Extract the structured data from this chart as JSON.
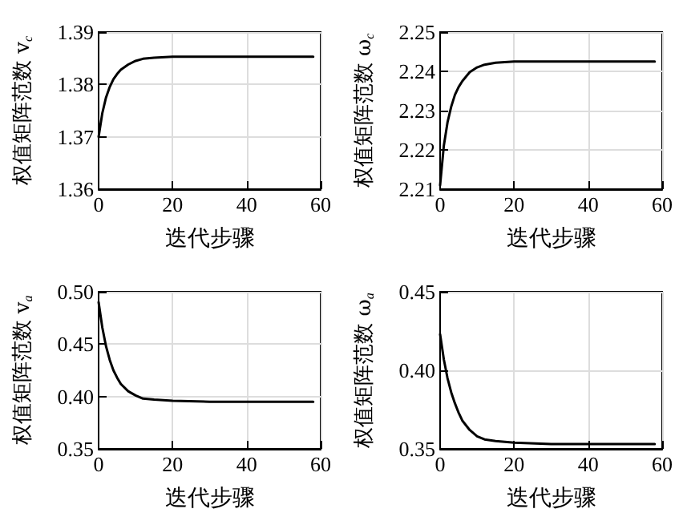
{
  "chart_data": [
    {
      "type": "line",
      "xlabel": "迭代步骤",
      "ylabel": "权值矩阵范数 v$_{c}$",
      "x": [
        0,
        1,
        2,
        3,
        4,
        5,
        6,
        8,
        10,
        12,
        15,
        20,
        30,
        40,
        50,
        58
      ],
      "series": [
        {
          "color": "#000000",
          "values": [
            1.37,
            1.3745,
            1.3775,
            1.3795,
            1.381,
            1.382,
            1.3828,
            1.3838,
            1.3845,
            1.3849,
            1.3851,
            1.3853,
            1.3853,
            1.3853,
            1.3853,
            1.3853
          ]
        }
      ],
      "xlim": [
        0,
        60
      ],
      "xticks": [
        0,
        20,
        40,
        60
      ],
      "ylim": [
        1.36,
        1.39
      ],
      "yticks": [
        1.36,
        1.37,
        1.38,
        1.39
      ],
      "grid": true,
      "marker": "none",
      "line_style": "solid"
    },
    {
      "type": "line",
      "xlabel": "迭代步骤",
      "ylabel": "权值矩阵范数 ω$_{c}$",
      "x": [
        0,
        1,
        2,
        3,
        4,
        5,
        6,
        8,
        10,
        12,
        15,
        20,
        30,
        40,
        50,
        58
      ],
      "series": [
        {
          "color": "#000000",
          "values": [
            2.211,
            2.221,
            2.227,
            2.231,
            2.234,
            2.236,
            2.2375,
            2.2398,
            2.241,
            2.2417,
            2.2422,
            2.2425,
            2.2425,
            2.2425,
            2.2425,
            2.2425
          ]
        }
      ],
      "xlim": [
        0,
        60
      ],
      "xticks": [
        0,
        20,
        40,
        60
      ],
      "ylim": [
        2.21,
        2.25
      ],
      "yticks": [
        2.21,
        2.22,
        2.23,
        2.24,
        2.25
      ],
      "grid": true,
      "marker": "none",
      "line_style": "solid"
    },
    {
      "type": "line",
      "xlabel": "迭代步骤",
      "ylabel": "权值矩阵范数 v$_{a}$",
      "x": [
        0,
        1,
        2,
        3,
        4,
        5,
        6,
        8,
        10,
        12,
        15,
        20,
        30,
        40,
        50,
        58
      ],
      "series": [
        {
          "color": "#000000",
          "values": [
            0.49,
            0.466,
            0.448,
            0.435,
            0.425,
            0.418,
            0.412,
            0.405,
            0.401,
            0.398,
            0.397,
            0.396,
            0.395,
            0.395,
            0.395,
            0.395
          ]
        }
      ],
      "xlim": [
        0,
        60
      ],
      "xticks": [
        0,
        20,
        40,
        60
      ],
      "ylim": [
        0.35,
        0.5
      ],
      "yticks": [
        {
          "value": 0.35,
          "label": "0.35"
        },
        {
          "value": 0.4,
          "label": "0.40"
        },
        {
          "value": 0.45,
          "label": "0.45"
        },
        {
          "value": 0.5,
          "label": "0.50"
        }
      ],
      "grid": true,
      "marker": "none",
      "line_style": "solid"
    },
    {
      "type": "line",
      "xlabel": "迭代步骤",
      "ylabel": "权值矩阵范数 ω$_{a}$",
      "x": [
        0,
        1,
        2,
        3,
        4,
        5,
        6,
        8,
        10,
        12,
        15,
        20,
        30,
        40,
        50,
        58
      ],
      "series": [
        {
          "color": "#000000",
          "values": [
            0.423,
            0.407,
            0.395,
            0.386,
            0.379,
            0.373,
            0.368,
            0.362,
            0.358,
            0.356,
            0.355,
            0.354,
            0.353,
            0.353,
            0.353,
            0.353
          ]
        }
      ],
      "xlim": [
        0,
        60
      ],
      "xticks": [
        0,
        20,
        40,
        60
      ],
      "ylim": [
        0.35,
        0.45
      ],
      "yticks": [
        {
          "value": 0.35,
          "label": "0.35"
        },
        {
          "value": 0.4,
          "label": "0.40"
        },
        {
          "value": 0.45,
          "label": "0.45"
        }
      ],
      "grid": true,
      "marker": "none",
      "line_style": "solid"
    }
  ]
}
